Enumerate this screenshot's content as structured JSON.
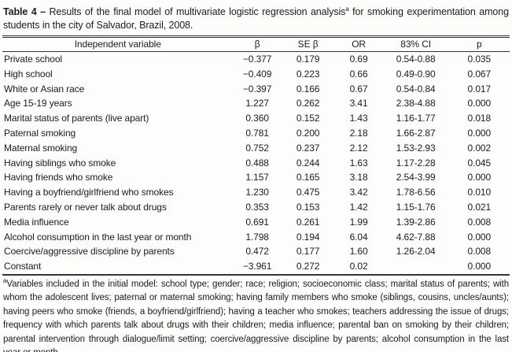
{
  "title": {
    "label": "Table 4 –",
    "before_sup": " Results of the final model of multivariate logistic regression analysis",
    "sup": "a",
    "after_sup": " for smoking experimentation among students in the city of Salvador, Brazil, 2008."
  },
  "table": {
    "columns": [
      "Independent variable",
      "β",
      "SE β",
      "OR",
      "83% CI",
      "p"
    ],
    "rows": [
      [
        "Private school",
        "−0.377",
        "0.179",
        "0.69",
        "0.54-0.88",
        "0.035"
      ],
      [
        "High school",
        "−0.409",
        "0.223",
        "0.66",
        "0.49-0.90",
        "0.067"
      ],
      [
        "White or Asian race",
        "−0.397",
        "0.166",
        "0.67",
        "0.54-0.84",
        "0.017"
      ],
      [
        "Age 15-19 years",
        "1.227",
        "0.262",
        "3.41",
        "2.38-4.88",
        "0.000"
      ],
      [
        "Marital status of parents (live apart)",
        "0.360",
        "0.152",
        "1.43",
        "1.16-1.77",
        "0.018"
      ],
      [
        "Paternal smoking",
        "0.781",
        "0.200",
        "2.18",
        "1.66-2.87",
        "0.000"
      ],
      [
        "Maternal smoking",
        "0.752",
        "0.237",
        "2.12",
        "1.53-2.93",
        "0.002"
      ],
      [
        "Having siblings who smoke",
        "0.488",
        "0.244",
        "1.63",
        "1.17-2.28",
        "0.045"
      ],
      [
        "Having friends who smoke",
        "1.157",
        "0.165",
        "3.18",
        "2.54-3.99",
        "0.000"
      ],
      [
        "Having a boyfriend/girlfriend who smokes",
        "1.230",
        "0.475",
        "3.42",
        "1.78-6.56",
        "0.010"
      ],
      [
        "Parents rarely or never talk about drugs",
        "0.353",
        "0.153",
        "1.42",
        "1.15-1.76",
        "0.021"
      ],
      [
        "Media influence",
        "0.691",
        "0.261",
        "1.99",
        "1.39-2.86",
        "0.008"
      ],
      [
        "Alcohol consumption in the last year or month",
        "1.798",
        "0.194",
        "6.04",
        "4.62-7.88",
        "0.000"
      ],
      [
        "Coercive/aggressive discipline by parents",
        "0.472",
        "0.177",
        "1.60",
        "1.26-2.04",
        "0.008"
      ],
      [
        "Constant",
        "−3.961",
        "0.272",
        "0.02",
        "",
        "0.000"
      ]
    ]
  },
  "footnote": {
    "sup": "a",
    "text": "Variables included in the initial model: school type; gender; race; religion; socioeconomic class; marital status of parents; with whom the adolescent lives; paternal or maternal smoking; having family members who smoke (siblings, cousins, uncles/aunts); having peers who smoke (friends, a boyfriend/girlfriend); having a teacher who smokes; teachers addressing the issue of drugs; frequency with which parents talk about drugs with their children; media influence; parental ban on smoking by their children; parental intervention through dialogue/limit setting; coercive/aggressive discipline by parents; alcohol consumption in the last year or month."
  },
  "colors": {
    "text": "#1b1b22",
    "rule": "#34343c",
    "background": "#fdfdfc"
  }
}
